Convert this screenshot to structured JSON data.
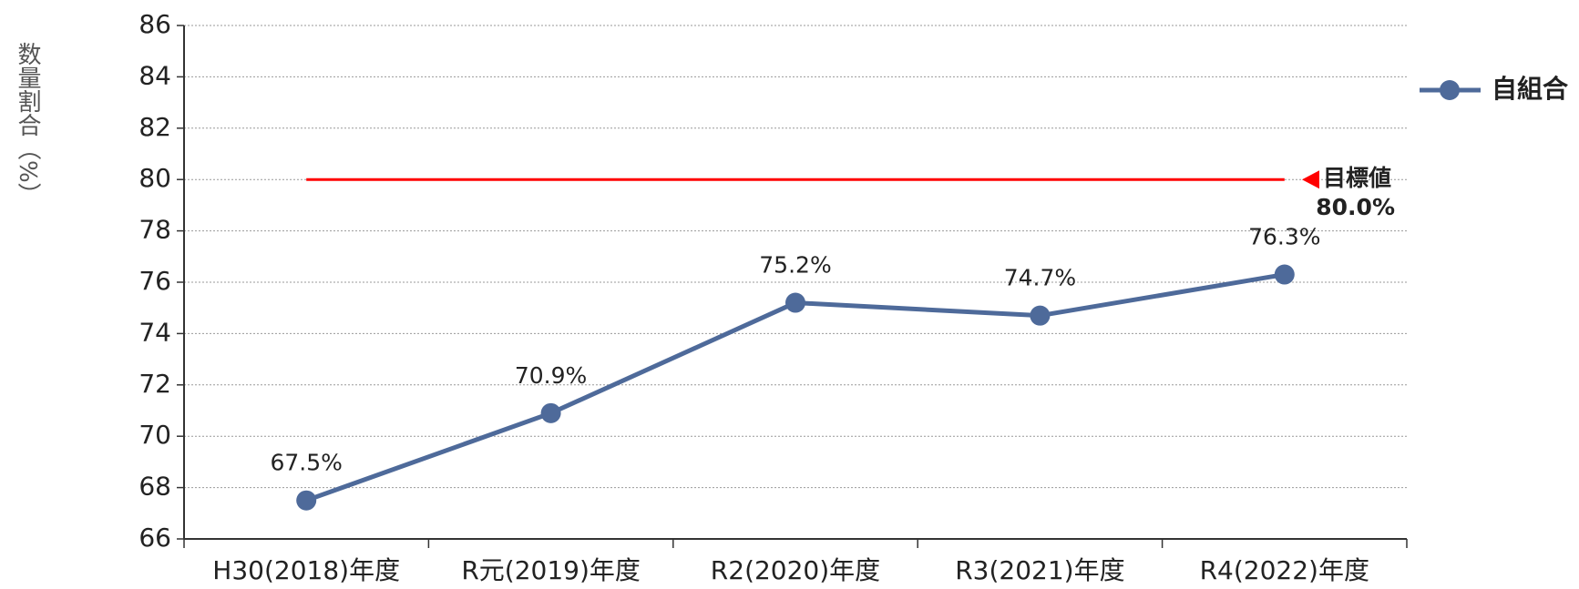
{
  "chart_data": {
    "type": "line",
    "y_label": "数量割合（%）",
    "categories": [
      "H30(2018)年度",
      "R元(2019)年度",
      "R2(2020)年度",
      "R3(2021)年度",
      "R4(2022)年度"
    ],
    "series": [
      {
        "name": "自組合",
        "color": "#4e6a9a",
        "values": [
          67.5,
          70.9,
          75.2,
          74.7,
          76.3
        ],
        "value_labels": [
          "67.5%",
          "70.9%",
          "75.2%",
          "74.7%",
          "76.3%"
        ]
      }
    ],
    "ylim": [
      66,
      86
    ],
    "yticks": [
      66,
      68,
      70,
      72,
      74,
      76,
      78,
      80,
      82,
      84,
      86
    ],
    "grid": true,
    "legend": "right",
    "target": {
      "value": 80,
      "color": "#ff0000",
      "label": "目標値",
      "value_label": "80.0%"
    }
  }
}
